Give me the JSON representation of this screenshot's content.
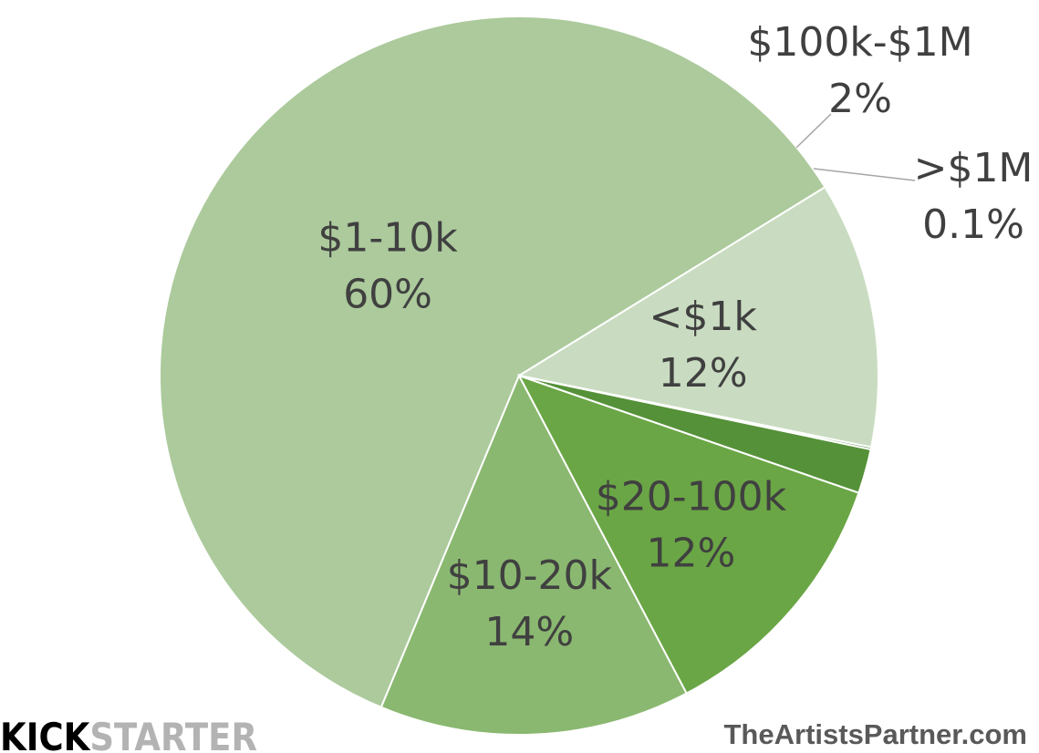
{
  "chart_data": {
    "type": "pie",
    "title": "",
    "slices": [
      {
        "label": "<$1k",
        "value_text": "12%",
        "value": 12,
        "color": "#c9dcc1"
      },
      {
        "label": "$1-10k",
        "value_text": "60%",
        "value": 60,
        "color": "#acca9c"
      },
      {
        "label": "$10-20k",
        "value_text": "14%",
        "value": 14,
        "color": "#8ab870"
      },
      {
        "label": "$20-100k",
        "value_text": "12%",
        "value": 12,
        "color": "#6aa645"
      },
      {
        "label": "$100k-$1M",
        "value_text": "2%",
        "value": 2,
        "color": "#559138"
      },
      {
        "label": ">$1M",
        "value_text": "0.1%",
        "value": 0.1,
        "color": "#3f7a2a"
      }
    ],
    "legend": "none",
    "label_color": "#404040"
  },
  "branding": {
    "logo_kick": "KICK",
    "logo_starter": "STARTER",
    "website": "TheArtistsPartner.com"
  }
}
